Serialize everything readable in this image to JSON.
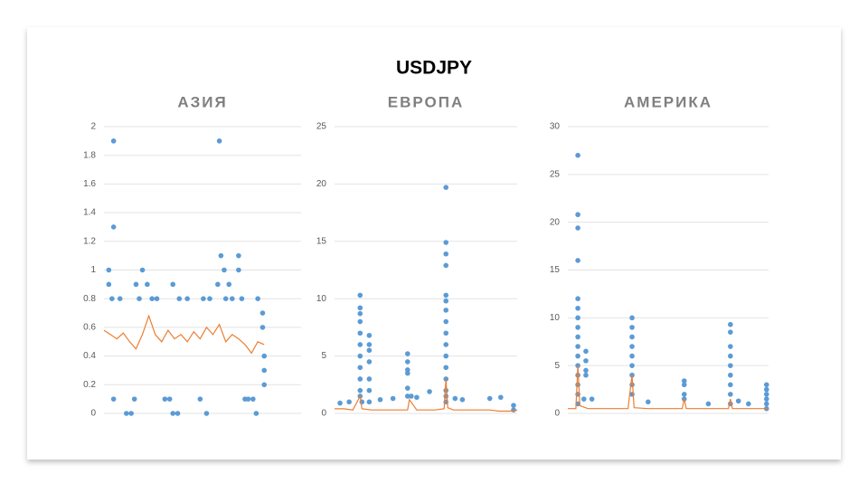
{
  "title": "USDJPY",
  "chart_data": [
    {
      "type": "scatter",
      "title": "АЗИЯ",
      "xlim": [
        0,
        123
      ],
      "ylim": [
        0,
        2
      ],
      "yticks": [
        0,
        0.2,
        0.4,
        0.6,
        0.8,
        1,
        1.2,
        1.4,
        1.6,
        1.8,
        2
      ],
      "grid": true,
      "series": [
        {
          "type": "scatter",
          "color": "#5b9bd5",
          "x": [
            3,
            3,
            6,
            6,
            6,
            5,
            10,
            14,
            17,
            19,
            20,
            24,
            22,
            27,
            30,
            33,
            38,
            41,
            43,
            43,
            46,
            47,
            52,
            60,
            62,
            64,
            66,
            71,
            72,
            73,
            75,
            76,
            78,
            80,
            84,
            84,
            86,
            88,
            90,
            93,
            95,
            96,
            99,
            99,
            100,
            100,
            100
          ],
          "values": [
            1,
            0.9,
            1.9,
            1.3,
            0.1,
            0.8,
            0.8,
            0,
            0,
            0.1,
            0.9,
            1,
            0.8,
            0.9,
            0.8,
            0.8,
            0.1,
            0.1,
            0.9,
            0,
            0,
            0.8,
            0.8,
            0.1,
            0.8,
            0,
            0.8,
            0.9,
            1.9,
            1.1,
            1,
            0.8,
            0.9,
            0.8,
            1.1,
            1,
            0.8,
            0.1,
            0.1,
            0.1,
            0,
            0.8,
            0.7,
            0.6,
            0.4,
            0.3,
            0.2
          ]
        },
        {
          "type": "line",
          "color": "#ed7d31",
          "x": [
            0,
            4,
            8,
            12,
            16,
            20,
            24,
            28,
            32,
            36,
            40,
            44,
            48,
            52,
            56,
            60,
            64,
            68,
            72,
            76,
            80,
            84,
            88,
            92,
            96,
            100
          ],
          "values": [
            0.58,
            0.55,
            0.52,
            0.56,
            0.5,
            0.45,
            0.55,
            0.68,
            0.55,
            0.5,
            0.58,
            0.52,
            0.55,
            0.5,
            0.57,
            0.52,
            0.6,
            0.55,
            0.62,
            0.5,
            0.55,
            0.52,
            0.48,
            0.42,
            0.5,
            0.48
          ]
        }
      ]
    },
    {
      "type": "scatter",
      "title": "ЕВРОПА",
      "xlim": [
        0,
        100
      ],
      "ylim": [
        0,
        25
      ],
      "yticks": [
        0,
        5,
        10,
        15,
        20,
        25
      ],
      "grid": true,
      "series": [
        {
          "type": "scatter",
          "color": "#5b9bd5",
          "x": [
            14,
            14,
            14,
            14,
            14,
            14,
            14,
            14,
            14,
            14,
            14,
            15,
            19,
            19,
            19,
            19,
            19,
            19,
            19,
            40,
            40,
            40,
            40,
            40,
            40,
            42,
            45,
            61,
            61,
            61,
            61,
            61,
            61,
            61,
            61,
            61,
            61,
            61,
            61,
            61,
            61,
            61,
            61,
            3,
            8,
            25,
            32,
            52,
            66,
            70,
            85,
            91,
            98,
            98
          ],
          "values": [
            10.3,
            9.2,
            8.7,
            8,
            7,
            6,
            5,
            4,
            3,
            2,
            1.5,
            1,
            6.8,
            6,
            5.5,
            4.5,
            3,
            2,
            1,
            5.2,
            4.5,
            3.8,
            3.5,
            2.2,
            1.5,
            1.5,
            1.4,
            19.7,
            14.9,
            13.9,
            12.9,
            10.3,
            9.8,
            9,
            8,
            7,
            6,
            5,
            4,
            3,
            2,
            1.5,
            1,
            0.9,
            1,
            1.2,
            1.3,
            1.9,
            1.3,
            1.2,
            1.3,
            1.4,
            0.7,
            0.3
          ]
        },
        {
          "type": "line",
          "color": "#ed7d31",
          "x": [
            0,
            5,
            10,
            14,
            15,
            20,
            25,
            30,
            35,
            40,
            41,
            45,
            50,
            55,
            60,
            61,
            62,
            65,
            70,
            75,
            80,
            85,
            90,
            95,
            98,
            100
          ],
          "values": [
            0.4,
            0.4,
            0.3,
            1.5,
            0.4,
            0.3,
            0.3,
            0.3,
            0.3,
            0.3,
            1.2,
            0.3,
            0.3,
            0.3,
            0.4,
            3,
            0.5,
            0.3,
            0.3,
            0.3,
            0.3,
            0.3,
            0.2,
            0.2,
            0.2,
            0.3
          ]
        }
      ]
    },
    {
      "type": "scatter",
      "title": "АМЕРИКА",
      "xlim": [
        0,
        100
      ],
      "ylim": [
        0,
        30
      ],
      "yticks": [
        0,
        5,
        10,
        15,
        20,
        25,
        30
      ],
      "grid": true,
      "series": [
        {
          "type": "scatter",
          "color": "#5b9bd5",
          "x": [
            5,
            5,
            5,
            5,
            5,
            5,
            5,
            5,
            5,
            5,
            5,
            5,
            5,
            5,
            5,
            5,
            9,
            9,
            9,
            9,
            8,
            12,
            32,
            32,
            32,
            32,
            32,
            32,
            32,
            32,
            32,
            58,
            58,
            58,
            58,
            81,
            81,
            81,
            81,
            81,
            81,
            81,
            81,
            81,
            85,
            99,
            99,
            99,
            99,
            99,
            99,
            40,
            70,
            90
          ],
          "values": [
            27,
            20.8,
            19.4,
            16,
            12,
            11,
            10,
            9,
            8,
            7,
            6,
            5,
            4,
            3,
            2,
            1,
            6.5,
            5.5,
            4.5,
            4,
            1.5,
            1.5,
            10,
            9,
            8,
            7,
            6,
            5,
            4,
            3,
            2,
            3.4,
            3,
            2,
            1.5,
            9.3,
            8.5,
            7,
            6,
            5,
            4,
            3,
            2,
            1,
            1.3,
            3,
            2.5,
            2,
            1.5,
            1,
            0.5,
            1.2,
            1,
            1
          ]
        },
        {
          "type": "line",
          "color": "#ed7d31",
          "x": [
            0,
            4,
            5,
            6,
            10,
            20,
            30,
            32,
            33,
            40,
            50,
            57,
            58,
            59,
            70,
            80,
            81,
            82,
            90,
            100
          ],
          "values": [
            0.5,
            0.5,
            5,
            0.8,
            0.5,
            0.5,
            0.5,
            4,
            0.6,
            0.5,
            0.5,
            0.5,
            1.5,
            0.5,
            0.5,
            0.5,
            1.5,
            0.5,
            0.5,
            0.5
          ]
        }
      ]
    }
  ]
}
